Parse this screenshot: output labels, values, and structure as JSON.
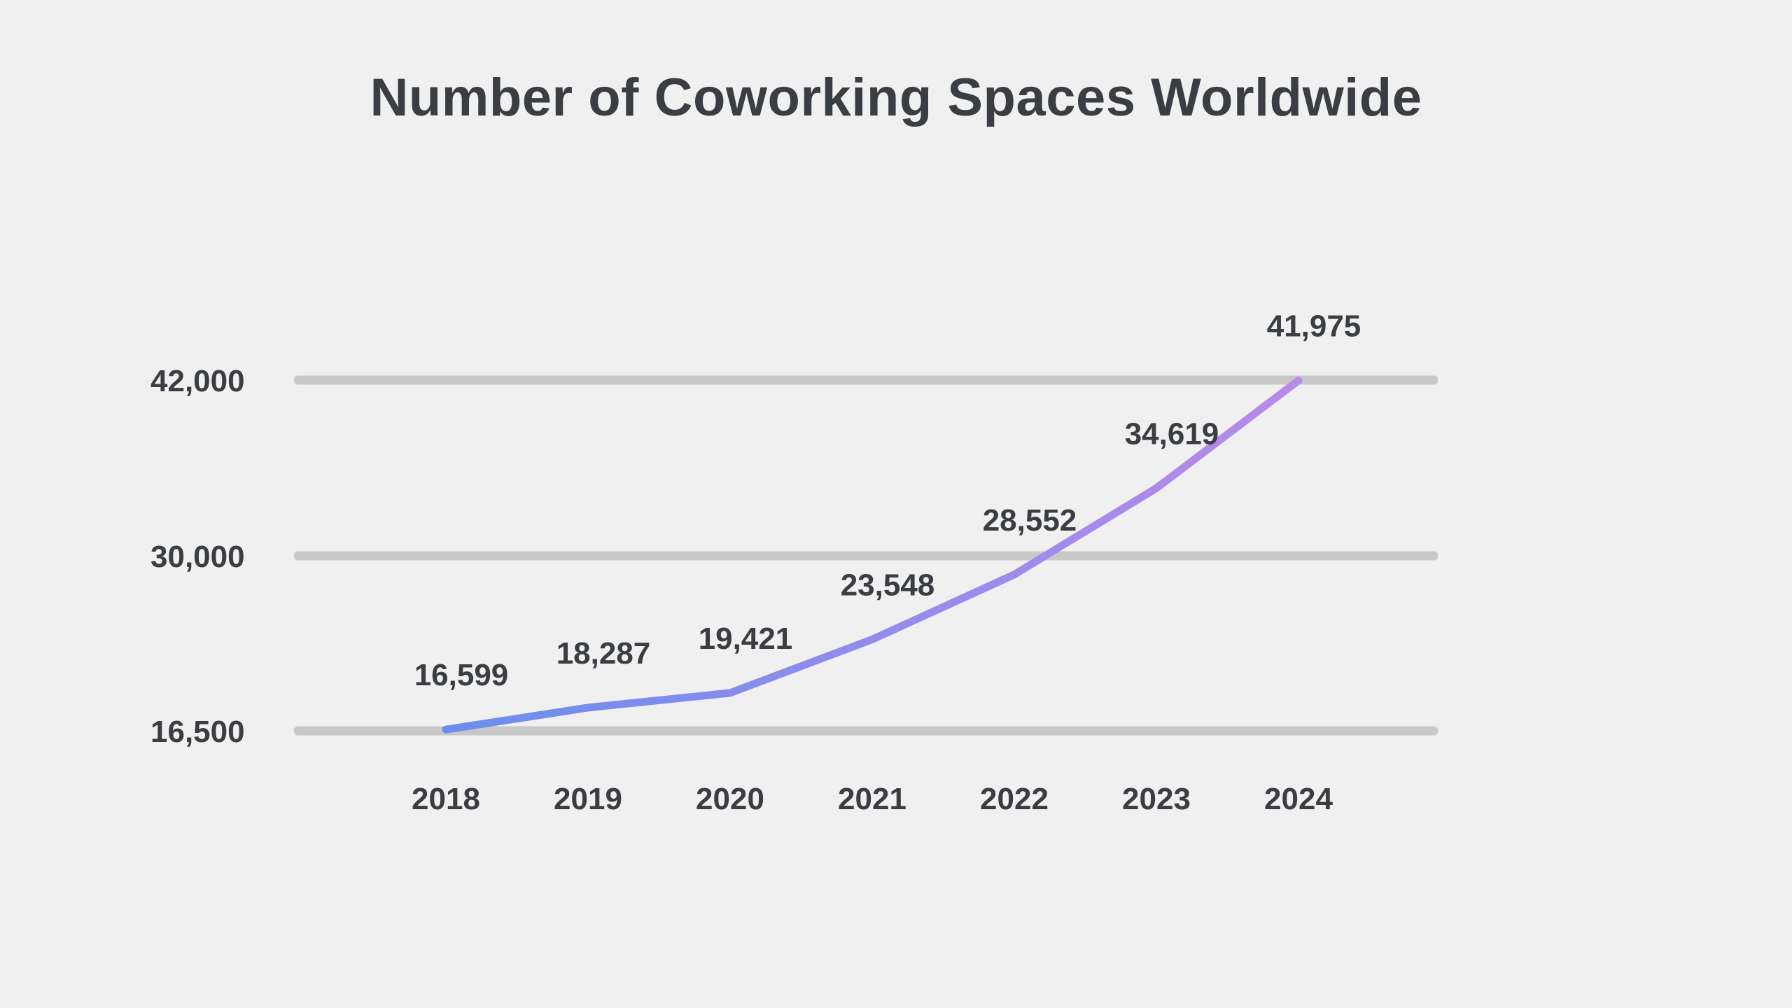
{
  "chart_data": {
    "type": "line",
    "title": "Number of Coworking Spaces Worldwide",
    "xlabel": "",
    "ylabel": "",
    "categories": [
      "2018",
      "2019",
      "2020",
      "2021",
      "2022",
      "2023",
      "2024"
    ],
    "series": [
      {
        "values": [
          16599,
          18287,
          19421,
          23548,
          28552,
          34619,
          41975
        ],
        "labels": [
          "16,599",
          "18,287",
          "19,421",
          "23,548",
          "28,552",
          "34,619",
          "41,975"
        ]
      }
    ],
    "y_ticks": [
      {
        "value": 16500,
        "label": "16,500"
      },
      {
        "value": 30000,
        "label": "30,000"
      },
      {
        "value": 42000,
        "label": "42,000"
      }
    ],
    "grid": true,
    "legend": "none",
    "colors": {
      "line_start": "#6b8ded",
      "line_end": "#b98ae8",
      "grid": "#c8c8c8",
      "text": "#3a3d42",
      "background": "#f0f0f0"
    }
  }
}
